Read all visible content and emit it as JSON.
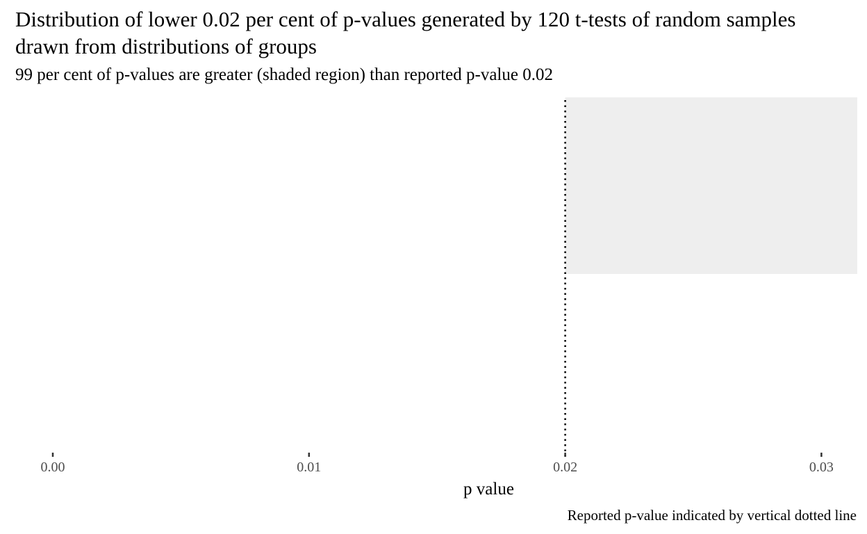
{
  "chart_data": {
    "type": "area",
    "title": "Distribution of lower 0.02 per cent of p-values generated by 120 t-tests of random samples drawn from distributions of groups",
    "subtitle": "99 per cent of p-values are greater (shaded region) than reported p-value 0.02",
    "caption": "Reported p-value indicated by vertical dotted line",
    "xlabel": "p value",
    "ylabel": "",
    "xlim": [
      0.0,
      0.0314
    ],
    "ylim": [
      0,
      1
    ],
    "xticks": [
      {
        "value": 0.0,
        "label": "0.00"
      },
      {
        "value": 0.01,
        "label": "0.01"
      },
      {
        "value": 0.02,
        "label": "0.02"
      },
      {
        "value": 0.03,
        "label": "0.03"
      }
    ],
    "shaded_region": {
      "x_start": 0.02,
      "x_end": 0.0314,
      "y_start": 0.5,
      "y_end": 1.0,
      "color": "#eeeeee"
    },
    "reference_line": {
      "x": 0.02,
      "style": "dotted",
      "color": "#000000"
    },
    "grid": false,
    "legend": "none"
  }
}
